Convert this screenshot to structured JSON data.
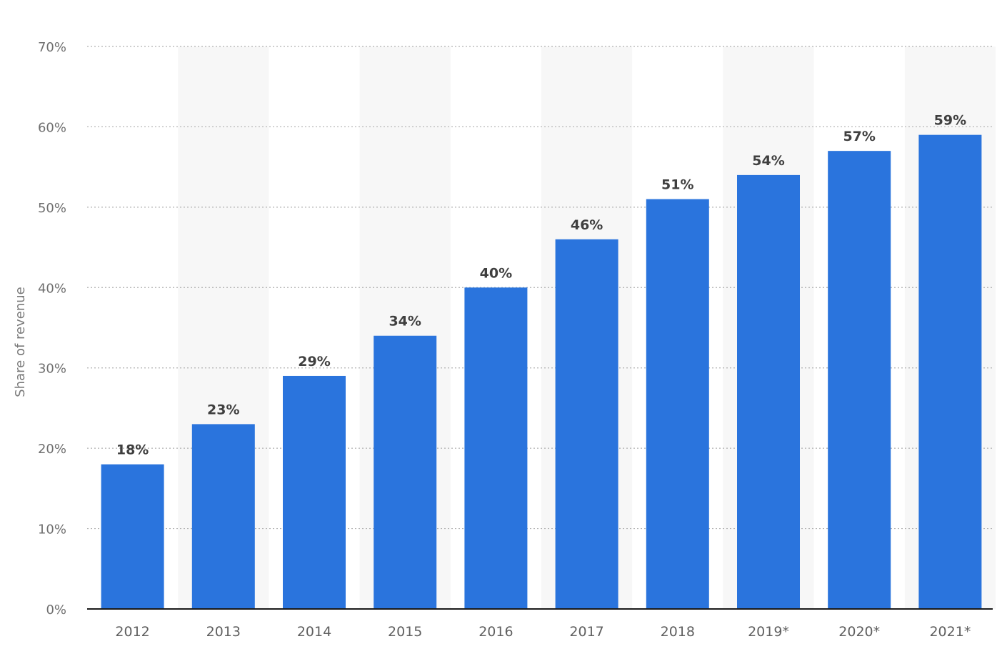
{
  "chart_data": {
    "type": "bar",
    "categories": [
      "2012",
      "2013",
      "2014",
      "2015",
      "2016",
      "2017",
      "2018",
      "2019*",
      "2020*",
      "2021*"
    ],
    "values": [
      18,
      23,
      29,
      34,
      40,
      46,
      51,
      54,
      57,
      59
    ],
    "value_labels": [
      "18%",
      "23%",
      "29%",
      "34%",
      "40%",
      "46%",
      "51%",
      "54%",
      "57%",
      "59%"
    ],
    "title": "",
    "xlabel": "",
    "ylabel": "Share of revenue",
    "ylim": [
      0,
      70
    ],
    "yticks": [
      0,
      10,
      20,
      30,
      40,
      50,
      60,
      70
    ],
    "ytick_labels": [
      "0%",
      "10%",
      "20%",
      "30%",
      "40%",
      "50%",
      "60%",
      "70%"
    ],
    "grid": true,
    "legend": "none",
    "colors": {
      "bar": "#2a74dd",
      "alt_band": "#f7f7f7",
      "grid": "#b0b0b0",
      "axis": "#1a1a1a"
    }
  }
}
